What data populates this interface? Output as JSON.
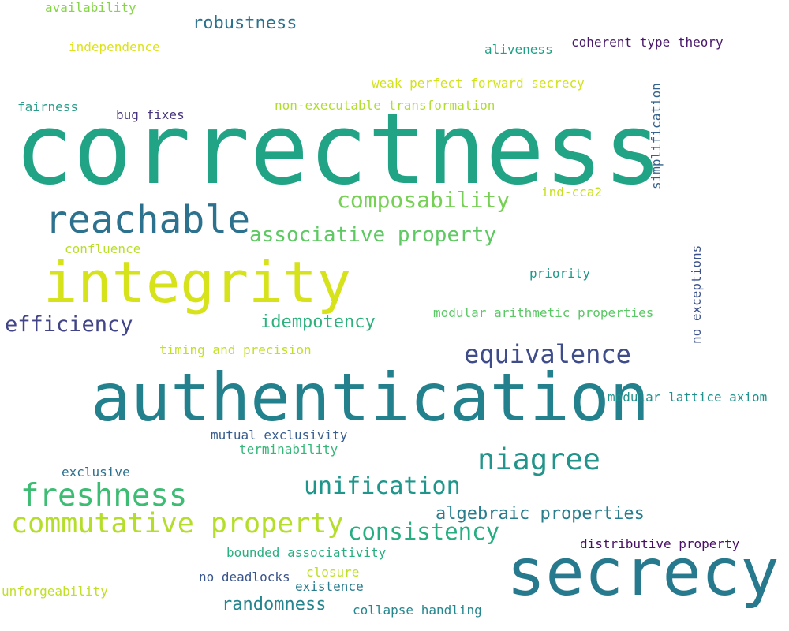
{
  "words": [
    {
      "text": "correctness",
      "color": "#21a386"
    },
    {
      "text": "authentication",
      "color": "#22818c"
    },
    {
      "text": "integrity",
      "color": "#d6e21a"
    },
    {
      "text": "secrecy",
      "color": "#277a8e"
    },
    {
      "text": "reachable",
      "color": "#2c718e"
    },
    {
      "text": "niagree",
      "color": "#23948b"
    },
    {
      "text": "freshness",
      "color": "#3dbc73"
    },
    {
      "text": "commutative property",
      "color": "#b5de2b"
    },
    {
      "text": "equivalence",
      "color": "#3e4c8a"
    },
    {
      "text": "unification",
      "color": "#1f968b"
    },
    {
      "text": "consistency",
      "color": "#26ad81"
    },
    {
      "text": "composability",
      "color": "#75d054"
    },
    {
      "text": "associative property",
      "color": "#5ec962"
    },
    {
      "text": "efficiency",
      "color": "#414487"
    },
    {
      "text": "algebraic properties",
      "color": "#287d8e"
    },
    {
      "text": "idempotency",
      "color": "#2db27d"
    },
    {
      "text": "robustness",
      "color": "#2c728e"
    },
    {
      "text": "randomness",
      "color": "#25858e"
    },
    {
      "text": "availability",
      "color": "#86d549"
    },
    {
      "text": "independence",
      "color": "#dde318"
    },
    {
      "text": "aliveness",
      "color": "#1fa187"
    },
    {
      "text": "coherent type theory",
      "color": "#481769"
    },
    {
      "text": "weak perfect forward secrecy",
      "color": "#d2e21b"
    },
    {
      "text": "fairness",
      "color": "#2a9d8a"
    },
    {
      "text": "bug fixes",
      "color": "#46337e"
    },
    {
      "text": "non-executable transformation",
      "color": "#b0dd2f"
    },
    {
      "text": "simplification",
      "color": "#33638d"
    },
    {
      "text": "ind-cca2",
      "color": "#c8e020"
    },
    {
      "text": "confluence",
      "color": "#b8de29"
    },
    {
      "text": "priority",
      "color": "#1f988b"
    },
    {
      "text": "no exceptions",
      "color": "#3b518b"
    },
    {
      "text": "modular arithmetic properties",
      "color": "#5ac864"
    },
    {
      "text": "timing and precision",
      "color": "#c2df23"
    },
    {
      "text": "modular lattice axiom",
      "color": "#21918c"
    },
    {
      "text": "mutual exclusivity",
      "color": "#365d8d"
    },
    {
      "text": "terminability",
      "color": "#35b779"
    },
    {
      "text": "exclusive",
      "color": "#2d708e"
    },
    {
      "text": "distributive property",
      "color": "#471063"
    },
    {
      "text": "bounded associativity",
      "color": "#29af7f"
    },
    {
      "text": "closure",
      "color": "#bddf26"
    },
    {
      "text": "no deadlocks",
      "color": "#3a548c"
    },
    {
      "text": "existence",
      "color": "#287c8e"
    },
    {
      "text": "unforgeability",
      "color": "#c0df25"
    },
    {
      "text": "collapse handling",
      "color": "#24878e"
    }
  ]
}
